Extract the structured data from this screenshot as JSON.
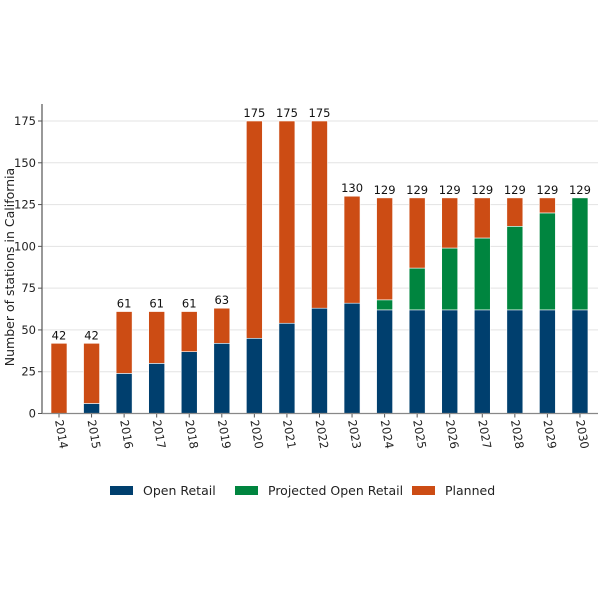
{
  "chart_data": {
    "type": "bar",
    "stacked": true,
    "title": "",
    "xlabel": "",
    "ylabel": "Number of stations in California",
    "ylim": [
      0,
      175
    ],
    "yticks": [
      0,
      25,
      50,
      75,
      100,
      125,
      150,
      175
    ],
    "grid": "horizontal",
    "legend_position": "bottom",
    "categories": [
      "2014",
      "2015",
      "2016",
      "2017",
      "2018",
      "2019",
      "2020",
      "2021",
      "2022",
      "2023",
      "2024",
      "2025",
      "2026",
      "2027",
      "2028",
      "2029",
      "2030"
    ],
    "series": [
      {
        "name": "Open Retail",
        "color": "#003f6e",
        "values": [
          0,
          6,
          24,
          30,
          37,
          42,
          45,
          54,
          63,
          66,
          62,
          62,
          62,
          62,
          62,
          62,
          62
        ]
      },
      {
        "name": "Projected Open Retail",
        "color": "#00853f",
        "values": [
          0,
          0,
          0,
          0,
          0,
          0,
          0,
          0,
          0,
          0,
          6,
          25,
          37,
          43,
          50,
          58,
          67
        ]
      },
      {
        "name": "Planned",
        "color": "#cc4c14",
        "values": [
          42,
          36,
          37,
          31,
          24,
          21,
          130,
          121,
          112,
          64,
          61,
          42,
          30,
          24,
          17,
          9,
          0
        ]
      }
    ],
    "totals": [
      42,
      42,
      61,
      61,
      61,
      63,
      175,
      175,
      175,
      130,
      129,
      129,
      129,
      129,
      129,
      129,
      129
    ]
  }
}
